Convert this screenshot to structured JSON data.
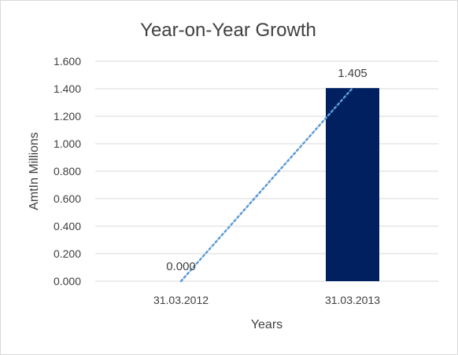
{
  "chart_data": {
    "type": "bar",
    "title": "Year-on-Year Growth",
    "xlabel": "Years",
    "ylabel": "AmtIn Millions",
    "categories": [
      "31.03.2012",
      "31.03.2013"
    ],
    "values": [
      0.0,
      1.405
    ],
    "data_labels": [
      "0.000",
      "1.405"
    ],
    "ylim": [
      0,
      1.6
    ],
    "y_ticks": [
      "0.000",
      "0.200",
      "0.400",
      "0.600",
      "0.800",
      "1.000",
      "1.200",
      "1.400",
      "1.600"
    ],
    "grid": true,
    "legend": "none",
    "trendline": "linear dotted",
    "colors": {
      "bar": "#002060",
      "trendline": "#5b9bd5",
      "grid": "#d9d9d9",
      "text": "#404040"
    }
  }
}
